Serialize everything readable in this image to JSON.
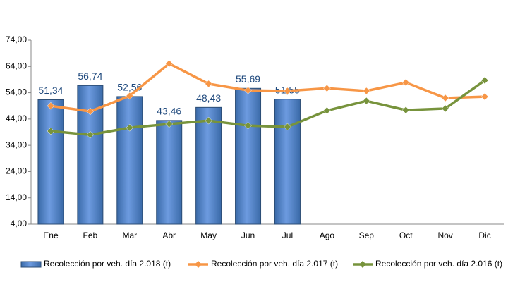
{
  "chart_data": {
    "type": "bar-line",
    "categories": [
      "Ene",
      "Feb",
      "Mar",
      "Abr",
      "May",
      "Jun",
      "Jul",
      "Ago",
      "Sep",
      "Oct",
      "Nov",
      "Dic"
    ],
    "series": [
      {
        "name": "Recolección por veh. día 2.018 (t)",
        "type": "bar",
        "color": "#4f81bd",
        "values": [
          51.34,
          56.74,
          52.56,
          43.46,
          48.43,
          55.69,
          51.55,
          null,
          null,
          null,
          null,
          null
        ],
        "value_labels": [
          "51,34",
          "56,74",
          "52,56",
          "43,46",
          "48,43",
          "55,69",
          "51,55",
          null,
          null,
          null,
          null,
          null
        ]
      },
      {
        "name": "Recolección por veh. día 2.017 (t)",
        "type": "line",
        "color": "#f79646",
        "values": [
          49.0,
          46.9,
          52.8,
          65.1,
          57.4,
          54.9,
          54.7,
          55.7,
          54.7,
          57.9,
          52.0,
          52.5
        ]
      },
      {
        "name": "Recolección por veh. día 2.016 (t)",
        "type": "line",
        "color": "#77933c",
        "values": [
          39.4,
          38.0,
          40.7,
          42.1,
          43.4,
          41.5,
          41.0,
          47.2,
          50.9,
          47.4,
          48.0,
          58.7
        ]
      }
    ],
    "ylim": [
      4,
      74
    ],
    "yticks": [
      {
        "value": 4,
        "label": "4,00"
      },
      {
        "value": 14,
        "label": "14,00"
      },
      {
        "value": 24,
        "label": "24,00"
      },
      {
        "value": 34,
        "label": "34,00"
      },
      {
        "value": 44,
        "label": "44,00"
      },
      {
        "value": 54,
        "label": "54,00"
      },
      {
        "value": 64,
        "label": "64,00"
      },
      {
        "value": 74,
        "label": "74,00"
      }
    ],
    "legend": "bottom"
  }
}
